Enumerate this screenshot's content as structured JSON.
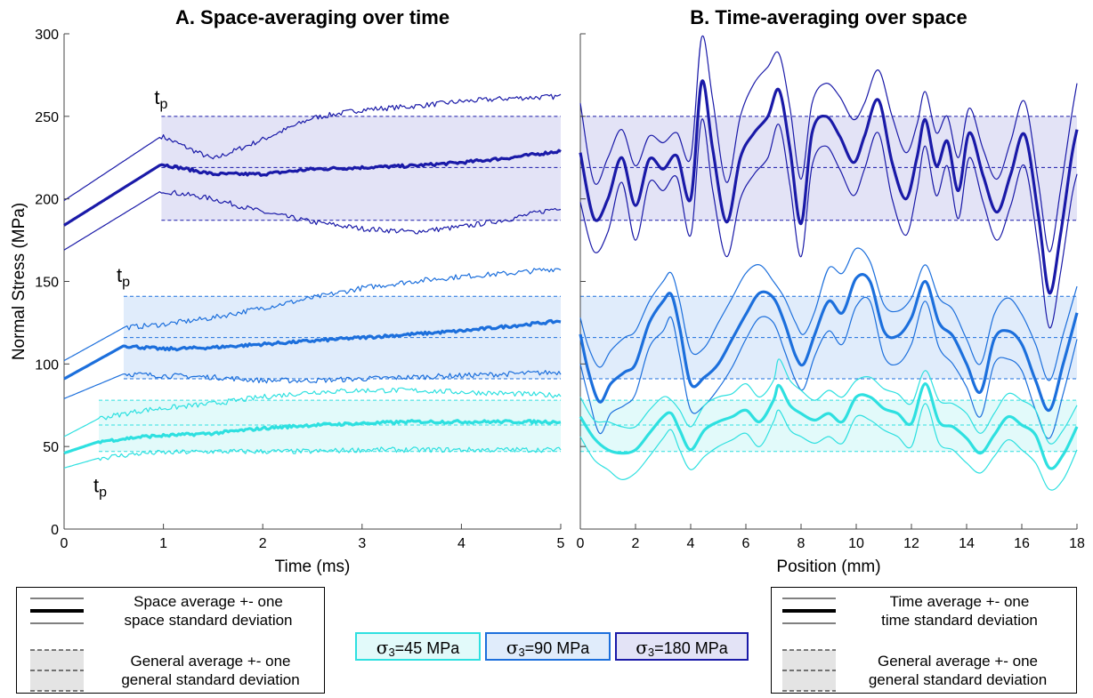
{
  "chart_data": [
    {
      "type": "line",
      "title": "A. Space-averaging over time",
      "xlabel": "Time (ms)",
      "ylabel": "Normal Stress (MPa)",
      "xlim": [
        0,
        5
      ],
      "ylim": [
        0,
        300
      ],
      "xticks": [
        "0",
        "1",
        "2",
        "3",
        "4",
        "5"
      ],
      "yticks": [
        "0",
        "50",
        "100",
        "150",
        "200",
        "250",
        "300"
      ],
      "grid": false,
      "tp_annotation": "t",
      "tp_subscript": "p",
      "series": [
        {
          "name": "σ3=180 MPa",
          "color": "#1a1aa8",
          "band_color": "#e3e3f6",
          "tp": 0.98,
          "general": {
            "mean": 219,
            "low": 187,
            "high": 250
          },
          "x": [
            0,
            0.98,
            1.5,
            2.0,
            2.5,
            3.0,
            3.5,
            4.0,
            4.5,
            5.0
          ],
          "mean": [
            184,
            221,
            215,
            215,
            218,
            219,
            220,
            222,
            225,
            229
          ],
          "upper": [
            199,
            238,
            224,
            236,
            249,
            254,
            256,
            259,
            261,
            262
          ],
          "lower": [
            169,
            205,
            200,
            192,
            186,
            182,
            180,
            183,
            188,
            195
          ]
        },
        {
          "name": "σ3=90 MPa",
          "color": "#1c6fdc",
          "band_color": "#e0ecfb",
          "tp": 0.6,
          "general": {
            "mean": 116,
            "low": 91,
            "high": 141
          },
          "x": [
            0,
            0.6,
            1.0,
            1.5,
            2.0,
            2.5,
            3.0,
            3.5,
            4.0,
            4.5,
            5.0
          ],
          "mean": [
            91,
            111,
            109,
            110,
            112,
            114,
            116,
            118,
            120,
            123,
            126
          ],
          "upper": [
            102,
            122,
            124,
            128,
            134,
            140,
            146,
            150,
            153,
            155,
            158
          ],
          "lower": [
            79,
            94,
            93,
            92,
            90,
            90,
            91,
            92,
            93,
            94,
            95
          ]
        },
        {
          "name": "σ3=45 MPa",
          "color": "#2ee0e0",
          "band_color": "#e2fafa",
          "tp": 0.35,
          "general": {
            "mean": 63,
            "low": 47,
            "high": 78
          },
          "x": [
            0,
            0.35,
            0.8,
            1.5,
            2.0,
            2.5,
            3.0,
            3.5,
            4.0,
            4.5,
            5.0
          ],
          "mean": [
            46,
            53,
            56,
            58,
            61,
            63,
            64,
            65,
            65,
            65,
            65
          ],
          "upper": [
            56,
            67,
            72,
            76,
            80,
            83,
            84,
            84,
            83,
            82,
            81
          ],
          "lower": [
            37,
            43,
            46,
            47,
            47,
            47,
            48,
            48,
            48,
            48,
            48
          ]
        }
      ]
    },
    {
      "type": "line",
      "title": "B. Time-averaging over space",
      "xlabel": "Position (mm)",
      "ylabel": "",
      "xlim": [
        0,
        18
      ],
      "ylim": [
        0,
        300
      ],
      "xticks": [
        "0",
        "2",
        "4",
        "6",
        "8",
        "10",
        "12",
        "14",
        "16",
        "18"
      ],
      "grid": false,
      "series": [
        {
          "name": "σ3=180 MPa",
          "color": "#1a1aa8",
          "band_color": "#e3e3f6",
          "general": {
            "mean": 219,
            "low": 187,
            "high": 250
          },
          "x": [
            0,
            0.5,
            1,
            1.5,
            2,
            2.5,
            3,
            3.5,
            4,
            4.4,
            4.8,
            5.3,
            5.8,
            6.3,
            6.8,
            7.2,
            7.6,
            8,
            8.4,
            8.9,
            9.4,
            9.9,
            10.3,
            10.8,
            11.3,
            11.8,
            12.2,
            12.5,
            12.9,
            13.3,
            13.7,
            14.1,
            14.6,
            15.1,
            15.6,
            16.1,
            16.6,
            17.0,
            17.4,
            17.8,
            18
          ],
          "mean": [
            228,
            188,
            200,
            225,
            196,
            224,
            218,
            226,
            200,
            271,
            230,
            186,
            225,
            240,
            250,
            266,
            230,
            185,
            240,
            250,
            238,
            222,
            238,
            260,
            222,
            200,
            225,
            248,
            220,
            235,
            205,
            240,
            214,
            192,
            215,
            239,
            190,
            143,
            178,
            225,
            242
          ],
          "upper": [
            258,
            210,
            225,
            242,
            220,
            238,
            234,
            240,
            225,
            298,
            260,
            210,
            250,
            270,
            280,
            288,
            255,
            212,
            258,
            270,
            262,
            248,
            258,
            278,
            250,
            228,
            245,
            265,
            240,
            250,
            225,
            255,
            230,
            212,
            235,
            259,
            210,
            168,
            205,
            250,
            270
          ],
          "lower": [
            198,
            168,
            180,
            210,
            175,
            210,
            205,
            213,
            178,
            248,
            205,
            165,
            200,
            215,
            225,
            245,
            208,
            165,
            220,
            232,
            218,
            202,
            218,
            240,
            200,
            178,
            205,
            232,
            202,
            220,
            188,
            225,
            198,
            175,
            196,
            220,
            170,
            122,
            155,
            200,
            215
          ]
        },
        {
          "name": "σ3=90 MPa",
          "color": "#1c6fdc",
          "band_color": "#e0ecfb",
          "general": {
            "mean": 116,
            "low": 91,
            "high": 141
          },
          "x": [
            0,
            0.3,
            0.7,
            1.1,
            1.6,
            2.0,
            2.5,
            3.0,
            3.3,
            3.6,
            4.0,
            4.5,
            5.0,
            5.5,
            6.0,
            6.5,
            7.0,
            7.4,
            7.8,
            8.1,
            8.5,
            9.0,
            9.5,
            10.0,
            10.5,
            11.0,
            11.5,
            12.0,
            12.5,
            13.0,
            13.5,
            14.0,
            14.5,
            15.0,
            15.5,
            16.0,
            16.5,
            17.0,
            17.5,
            18
          ],
          "mean": [
            118,
            95,
            77,
            88,
            95,
            100,
            125,
            138,
            142,
            122,
            88,
            92,
            100,
            115,
            130,
            143,
            140,
            125,
            105,
            100,
            118,
            138,
            131,
            152,
            150,
            120,
            117,
            128,
            150,
            125,
            117,
            100,
            83,
            115,
            120,
            112,
            90,
            72,
            100,
            131
          ],
          "upper": [
            128,
            110,
            98,
            108,
            116,
            120,
            138,
            150,
            155,
            138,
            108,
            110,
            125,
            140,
            155,
            160,
            150,
            140,
            125,
            118,
            132,
            158,
            155,
            170,
            162,
            136,
            132,
            140,
            160,
            140,
            133,
            115,
            100,
            130,
            140,
            130,
            112,
            90,
            118,
            147
          ],
          "lower": [
            100,
            80,
            58,
            70,
            75,
            82,
            110,
            120,
            128,
            105,
            72,
            75,
            85,
            98,
            115,
            128,
            125,
            108,
            90,
            85,
            105,
            120,
            112,
            135,
            138,
            105,
            100,
            112,
            138,
            110,
            100,
            86,
            68,
            100,
            103,
            96,
            72,
            55,
            82,
            115
          ]
        },
        {
          "name": "σ3=45 MPa",
          "color": "#2ee0e0",
          "band_color": "#e2fafa",
          "general": {
            "mean": 63,
            "low": 47,
            "high": 78
          },
          "x": [
            0,
            0.5,
            1.0,
            1.5,
            2.0,
            2.5,
            3.0,
            3.3,
            3.6,
            4.0,
            4.5,
            5.0,
            5.5,
            6.0,
            6.5,
            7.0,
            7.2,
            7.6,
            8.0,
            8.5,
            9.0,
            9.5,
            10.0,
            10.5,
            11.0,
            11.5,
            12.0,
            12.5,
            13.0,
            13.5,
            14.0,
            14.5,
            15.0,
            15.5,
            16.0,
            16.5,
            17.0,
            17.5,
            18
          ],
          "mean": [
            68,
            55,
            48,
            46,
            48,
            58,
            68,
            70,
            60,
            48,
            60,
            65,
            68,
            72,
            65,
            78,
            87,
            75,
            70,
            66,
            70,
            65,
            80,
            80,
            73,
            70,
            64,
            88,
            65,
            62,
            55,
            46,
            57,
            68,
            63,
            57,
            37,
            45,
            62
          ],
          "upper": [
            80,
            66,
            65,
            62,
            62,
            72,
            80,
            78,
            72,
            62,
            75,
            80,
            82,
            88,
            80,
            90,
            103,
            90,
            84,
            78,
            84,
            80,
            90,
            92,
            85,
            82,
            76,
            96,
            78,
            76,
            70,
            58,
            70,
            82,
            78,
            72,
            52,
            60,
            75
          ],
          "lower": [
            56,
            42,
            36,
            30,
            34,
            44,
            55,
            60,
            48,
            36,
            44,
            50,
            54,
            58,
            50,
            65,
            72,
            60,
            56,
            52,
            56,
            52,
            68,
            66,
            60,
            56,
            50,
            76,
            52,
            48,
            40,
            34,
            44,
            54,
            48,
            40,
            24,
            30,
            48
          ]
        }
      ]
    }
  ],
  "legend_left": {
    "line1_text_a": "Space average +- one",
    "line1_text_b": "space standard deviation",
    "line2_text_a": "General average +- one",
    "line2_text_b": "general standard deviation"
  },
  "legend_right": {
    "line1_text_a": "Time average +- one",
    "line1_text_b": "time standard deviation",
    "line2_text_a": "General average +- one",
    "line2_text_b": "general standard deviation"
  },
  "sigma_legend": [
    {
      "symbol": "σ",
      "subscript": "3",
      "value": "=45 MPa",
      "color": "#2ee0e0",
      "band_color": "#e2fafa"
    },
    {
      "symbol": "σ",
      "subscript": "3",
      "value": "=90 MPa",
      "color": "#1c6fdc",
      "band_color": "#e0ecfb"
    },
    {
      "symbol": "σ",
      "subscript": "3",
      "value": "=180 MPa",
      "color": "#1a1aa8",
      "band_color": "#e3e3f6"
    }
  ]
}
